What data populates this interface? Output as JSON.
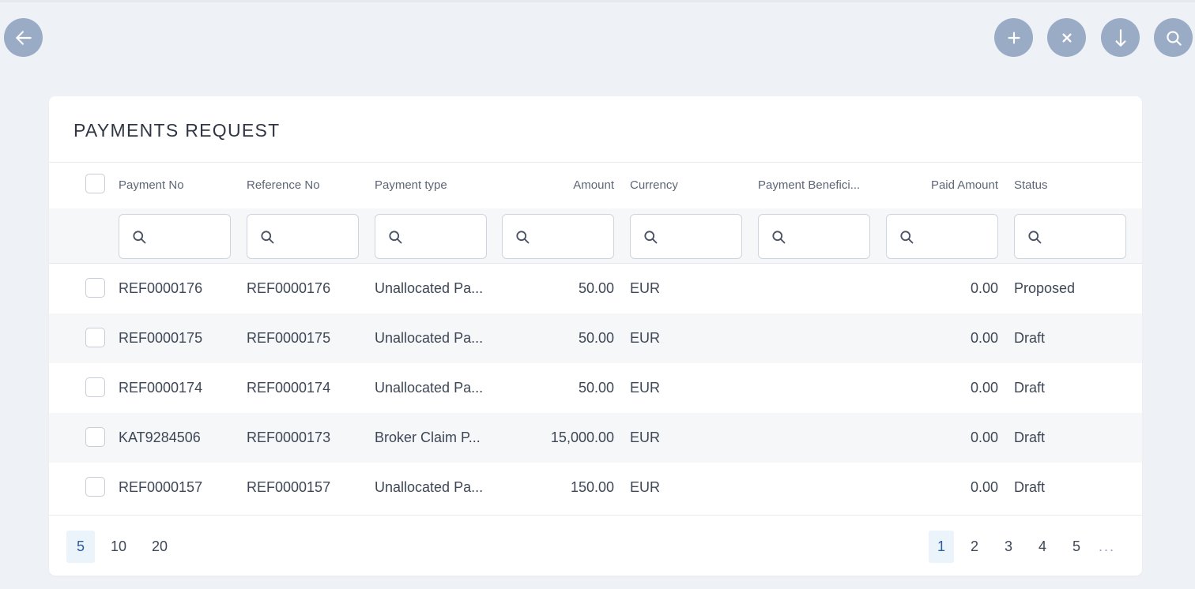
{
  "toolbar": {
    "back_icon": "arrow-left-icon",
    "actions": [
      {
        "name": "add-button",
        "icon": "plus-icon"
      },
      {
        "name": "clear-button",
        "icon": "close-icon"
      },
      {
        "name": "download-button",
        "icon": "arrow-down-icon"
      },
      {
        "name": "search-button",
        "icon": "search-icon"
      }
    ],
    "button_color": "#9aabc6"
  },
  "card": {
    "title": "PAYMENTS REQUEST"
  },
  "table": {
    "columns": [
      {
        "label": "Payment No"
      },
      {
        "label": "Reference No"
      },
      {
        "label": "Payment type"
      },
      {
        "label": "Amount"
      },
      {
        "label": "Currency"
      },
      {
        "label": "Payment Benefici..."
      },
      {
        "label": "Paid Amount"
      },
      {
        "label": "Status"
      }
    ],
    "rows": [
      {
        "payment_no": "REF0000176",
        "reference_no": "REF0000176",
        "payment_type": "Unallocated Pa...",
        "amount": "50.00",
        "currency": "EUR",
        "beneficiary": "",
        "paid_amount": "0.00",
        "status": "Proposed"
      },
      {
        "payment_no": "REF0000175",
        "reference_no": "REF0000175",
        "payment_type": "Unallocated Pa...",
        "amount": "50.00",
        "currency": "EUR",
        "beneficiary": "",
        "paid_amount": "0.00",
        "status": "Draft"
      },
      {
        "payment_no": "REF0000174",
        "reference_no": "REF0000174",
        "payment_type": "Unallocated Pa...",
        "amount": "50.00",
        "currency": "EUR",
        "beneficiary": "",
        "paid_amount": "0.00",
        "status": "Draft"
      },
      {
        "payment_no": "KAT9284506",
        "reference_no": "REF0000173",
        "payment_type": "Broker Claim P...",
        "amount": "15,000.00",
        "currency": "EUR",
        "beneficiary": "",
        "paid_amount": "0.00",
        "status": "Draft"
      },
      {
        "payment_no": "REF0000157",
        "reference_no": "REF0000157",
        "payment_type": "Unallocated Pa...",
        "amount": "150.00",
        "currency": "EUR",
        "beneficiary": "",
        "paid_amount": "0.00",
        "status": "Draft"
      }
    ]
  },
  "pagination": {
    "page_sizes": [
      "5",
      "10",
      "20"
    ],
    "active_page_size": "5",
    "pages": [
      "1",
      "2",
      "3",
      "4",
      "5"
    ],
    "active_page": "1",
    "ellipsis": "..."
  }
}
